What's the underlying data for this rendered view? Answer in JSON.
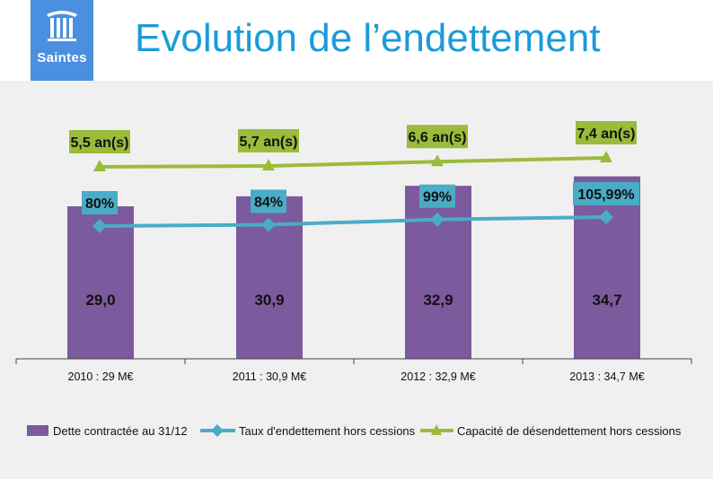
{
  "logo": {
    "text": "Saintes"
  },
  "title": "Evolution de l’endettement",
  "colors": {
    "bar": "#7b5a9e",
    "taux": "#4aacc6",
    "capacite": "#9bbb3a",
    "taux_label_bg": "#4aacc6",
    "capacite_label_bg": "#9bbb3a",
    "title": "#1b9bd8",
    "logo_bg": "#4a8fe0"
  },
  "chart_data": {
    "type": "bar",
    "categories": [
      "2010 : 29 M€",
      "2011 : 30,9 M€",
      "2012 : 32,9 M€",
      "2013 : 34,7 M€"
    ],
    "series": [
      {
        "name": "Dette contractée au 31/12",
        "kind": "bar",
        "values": [
          29.0,
          30.9,
          32.9,
          34.7
        ],
        "labels": [
          "29,0",
          "30,9",
          "32,9",
          "34,7"
        ]
      },
      {
        "name": "Taux d'endettement hors cessions",
        "kind": "line",
        "marker": "diamond",
        "values": [
          80,
          84,
          99,
          105.99
        ],
        "labels": [
          "80%",
          "84%",
          "99%",
          "105,99%"
        ]
      },
      {
        "name": "Capacité de désendettement hors cessions",
        "kind": "line",
        "marker": "triangle",
        "values": [
          5.5,
          5.7,
          6.6,
          7.4
        ],
        "labels": [
          "5,5 an(s)",
          "5,7 an(s)",
          "6,6 an(s)",
          "7,4 an(s)"
        ]
      }
    ],
    "ylim": [
      0,
      45
    ],
    "legend": "bottom"
  }
}
